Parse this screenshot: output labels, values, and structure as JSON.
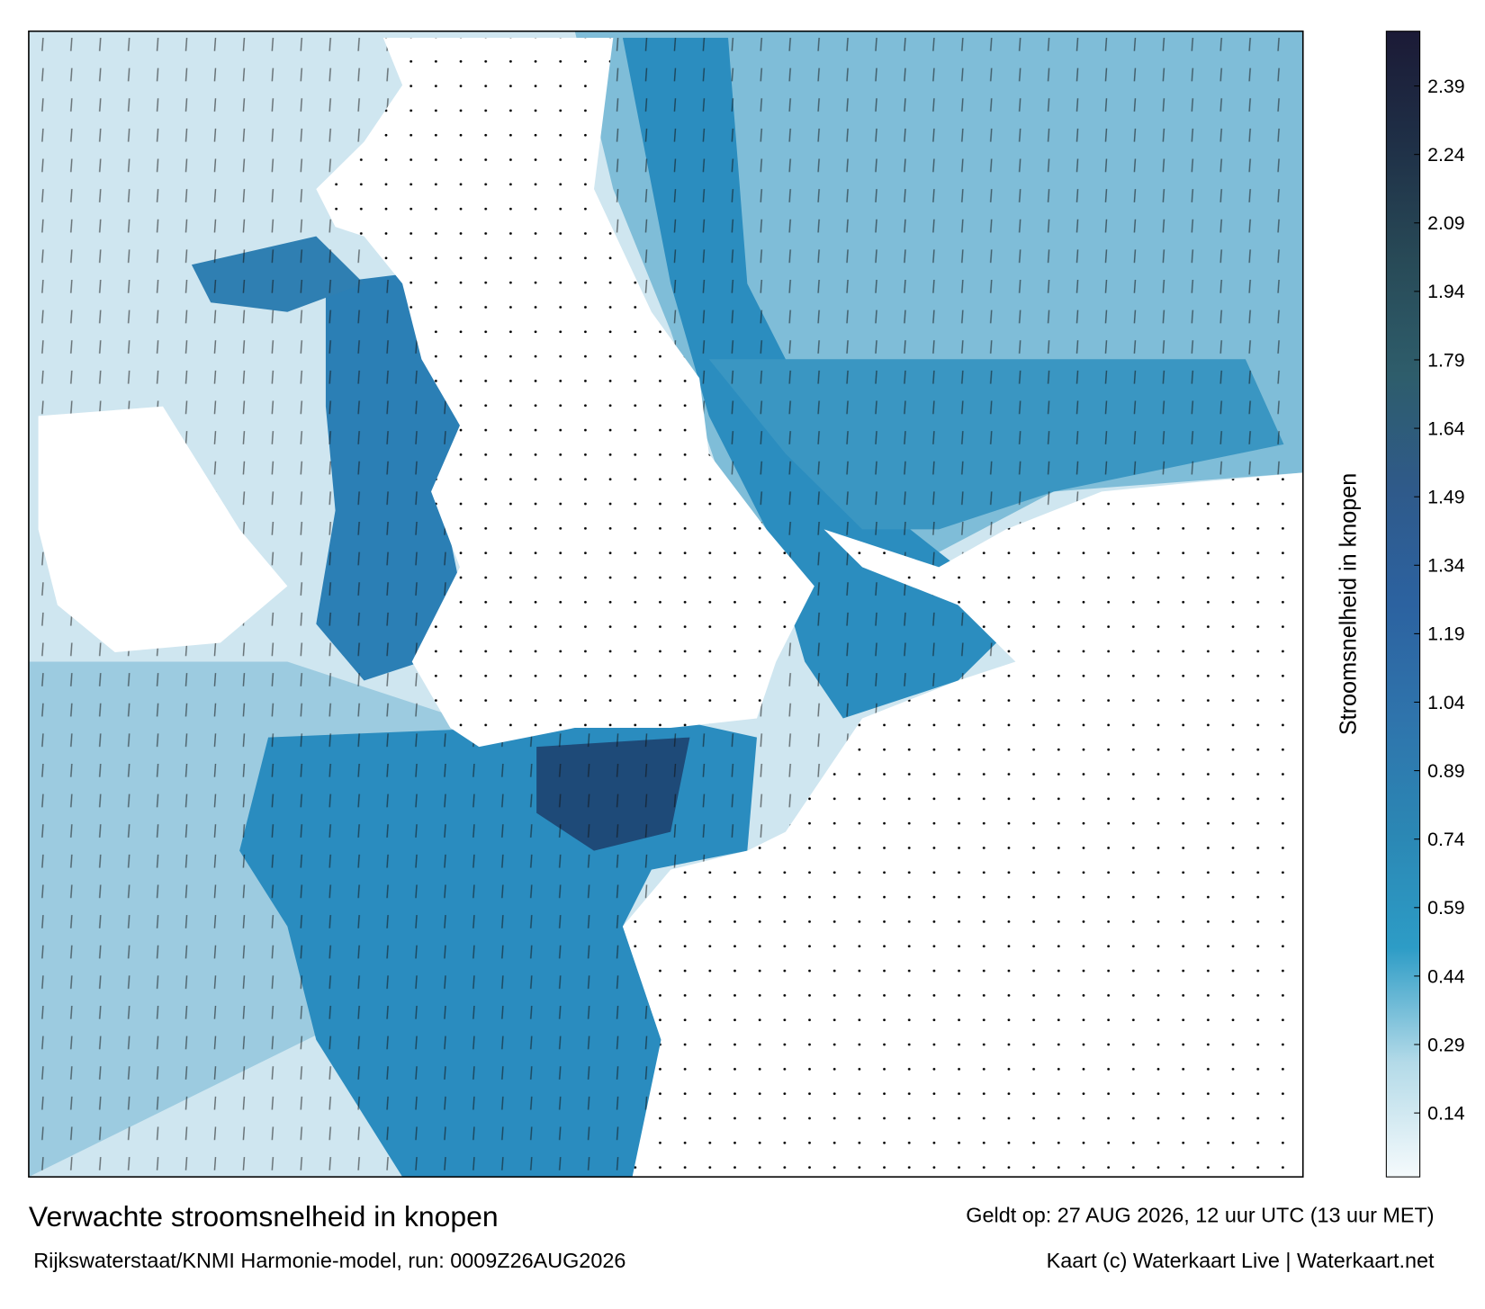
{
  "title": "Verwachte stroomsnelheid in knopen",
  "subtitle": "Rijkswaterstaat/KNMI Harmonie-model, run: 0009Z26AUG2026",
  "valid_time": "Geldt op: 27 AUG 2026, 12 uur UTC (13 uur MET)",
  "credit": "Kaart (c) Waterkaart Live | Waterkaart.net",
  "colorbar": {
    "label": "Stroomsnelheid in knopen",
    "lim": [
      0,
      2.51
    ],
    "ticks": [
      0.14,
      0.29,
      0.44,
      0.59,
      0.74,
      0.89,
      1.04,
      1.19,
      1.34,
      1.49,
      1.64,
      1.79,
      1.94,
      2.09,
      2.24,
      2.39
    ],
    "colors": [
      "#f5fafc",
      "#b3dae8",
      "#2d9cc6",
      "#2b87b4",
      "#2f74ac",
      "#2c62a0",
      "#2f5a8a",
      "#2e5d6b",
      "#284a57",
      "#1f3047",
      "#1b1a36"
    ]
  }
}
